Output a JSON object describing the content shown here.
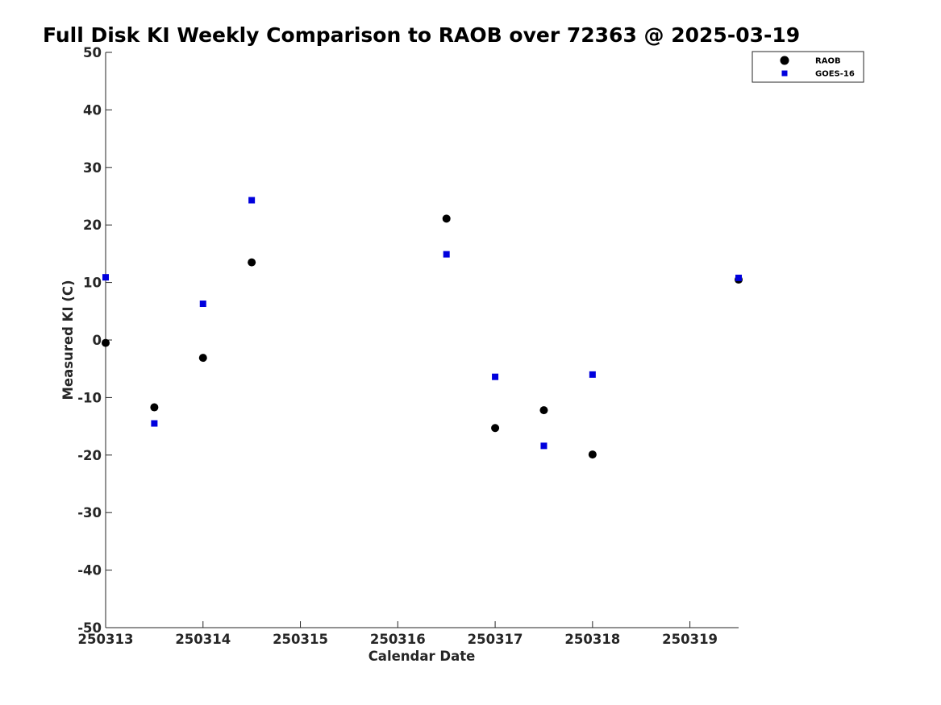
{
  "chart_data": {
    "type": "scatter",
    "title": "Full Disk KI Weekly Comparison to RAOB over 72363 @ 2025-03-19",
    "xlabel": "Calendar Date",
    "ylabel": "Measured KI (C)",
    "xlim": [
      250313,
      250319.5
    ],
    "ylim": [
      -50,
      50
    ],
    "x_ticks": [
      250313,
      250314,
      250315,
      250316,
      250317,
      250318,
      250319
    ],
    "x_tick_labels": [
      "250313",
      "250314",
      "250315",
      "250316",
      "250317",
      "250318",
      "250319"
    ],
    "y_ticks": [
      50,
      40,
      30,
      20,
      10,
      0,
      -10,
      -20,
      -30,
      -40,
      -50
    ],
    "y_tick_labels": [
      "50",
      "40",
      "30",
      "20",
      "10",
      "0",
      "-10",
      "-20",
      "-30",
      "-40",
      "-50"
    ],
    "grid": false,
    "legend_position": "top-right",
    "series": [
      {
        "name": "RAOB",
        "marker": "circle",
        "color": "#000000",
        "x": [
          250313.0,
          250313.5,
          250314.0,
          250314.5,
          250316.5,
          250317.0,
          250317.5,
          250318.0,
          250319.5
        ],
        "y": [
          -0.5,
          -11.7,
          -3.1,
          13.5,
          21.1,
          -15.3,
          -12.2,
          -19.9,
          10.5
        ]
      },
      {
        "name": "GOES-16",
        "marker": "square",
        "color": "#0000dd",
        "x": [
          250313.0,
          250313.5,
          250314.0,
          250314.5,
          250316.5,
          250317.0,
          250317.5,
          250318.0,
          250319.5
        ],
        "y": [
          10.9,
          -14.5,
          6.3,
          24.3,
          14.9,
          -6.4,
          -18.4,
          -6.0,
          10.8
        ]
      }
    ]
  }
}
